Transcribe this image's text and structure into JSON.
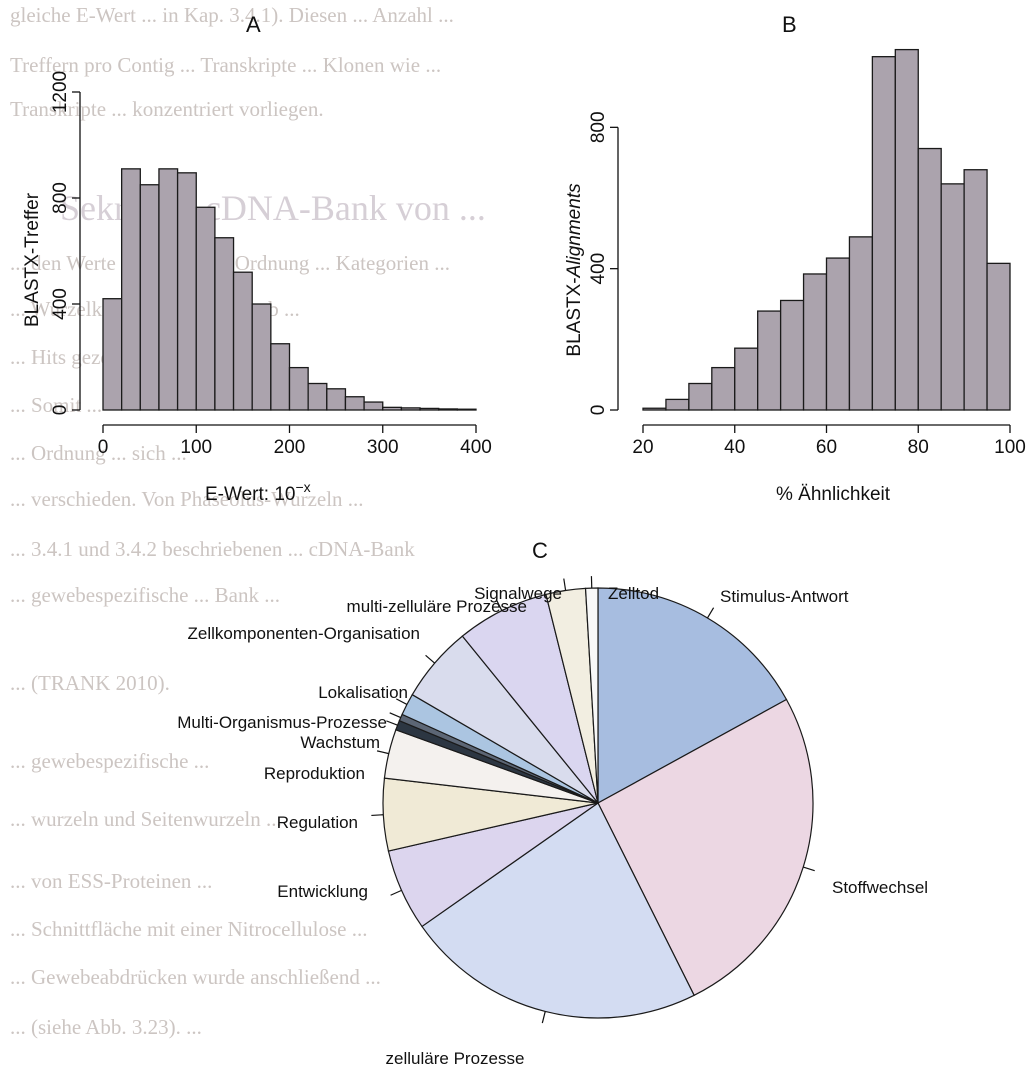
{
  "background_text": {
    "lines": [
      "gleiche E-Wert ... in Kap. 3.4.1). Diesen ... Anzahl ...",
      "Treffern pro Contig ... Transkripte ... Klonen wie ...",
      "Transkripte ... konzentriert vorliegen.",
      "Sekretive cDNA-Bank von ...",
      "... den Werte ... gehörende Ordnung ... Kategorien ...",
      "... Wurzelknospen und der Laub ...",
      "... Hits gezeigt werden ...",
      "... Somit ...",
      "... Ordnung ... sich ...",
      "... verschieden. Von Phaseolus-Wurzeln ... ",
      "... 3.4.1 und 3.4.2 beschriebenen ... cDNA-Bank",
      "... gewebespezifische ... Bank ...",
      "... (TRANK 2010).",
      "... gewebespezifische ...",
      "... wurzeln und Seitenwurzeln ...",
      "... von ESS-Proteinen ...",
      "... Schnittfläche mit einer Nitrocellulose ...",
      "... Gewebeabdrücken wurde anschließend ...",
      "... (siehe Abb. 3.23). ..."
    ]
  },
  "chart_data": [
    {
      "panel": "A",
      "type": "bar",
      "title": "A",
      "xlabel": "E-Wert: 10^{-x}",
      "ylabel": "BLASTX-Treffer",
      "xlim": [
        0,
        400
      ],
      "ylim": [
        0,
        1200
      ],
      "x_ticks": [
        "0",
        "100",
        "200",
        "300",
        "400"
      ],
      "y_ticks": [
        "0",
        "400",
        "800",
        "1200"
      ],
      "bin_width": 20,
      "bins_start": [
        0,
        20,
        40,
        60,
        80,
        100,
        120,
        140,
        160,
        180,
        200,
        220,
        240,
        260,
        280,
        300,
        320,
        340,
        360,
        380
      ],
      "values": [
        420,
        910,
        850,
        910,
        895,
        765,
        650,
        520,
        400,
        250,
        160,
        100,
        80,
        50,
        30,
        10,
        8,
        6,
        4,
        3
      ],
      "bar_color": "#aba3ad"
    },
    {
      "panel": "B",
      "type": "bar",
      "title": "B",
      "xlabel": "% Ähnlichkeit",
      "ylabel": "BLASTX-Alignments",
      "xlim": [
        20,
        100
      ],
      "ylim": [
        0,
        900
      ],
      "x_ticks": [
        "20",
        "40",
        "60",
        "80",
        "100"
      ],
      "y_ticks": [
        "0",
        "400",
        "800"
      ],
      "bin_width": 5,
      "bins_start": [
        20,
        25,
        30,
        35,
        40,
        45,
        50,
        55,
        60,
        65,
        70,
        75,
        80,
        85,
        90,
        95
      ],
      "values": [
        5,
        30,
        75,
        120,
        175,
        280,
        310,
        385,
        430,
        490,
        1000,
        1020,
        740,
        640,
        680,
        415
      ],
      "bar_color": "#aba3ad"
    },
    {
      "panel": "C",
      "type": "pie",
      "title": "C",
      "labels": [
        "Stimulus-Antwort",
        "Stoffwechsel",
        "zelluläre Prozesse",
        "Entwicklung",
        "Regulation",
        "Reproduktion",
        "Wachstum",
        "Multi-Organismus-Prozesse",
        "Lokalisation",
        "Zellkomponenten-Organisation",
        "multi-zelluläre Prozesse",
        "Signalwege",
        "Zelltod"
      ],
      "values": [
        16.6,
        25.0,
        22.1,
        6.0,
        5.3,
        3.6,
        0.7,
        0.5,
        1.6,
        5.6,
        6.8,
        2.9,
        0.9
      ],
      "colors": [
        "#a7bde0",
        "#ecd7e3",
        "#d3dcf2",
        "#dcd5ee",
        "#f0ead6",
        "#f4f1ee",
        "#2c3642",
        "#5c6675",
        "#abc5e1",
        "#d9dced",
        "#dad6f0",
        "#f2eee1",
        "#f8f8f8"
      ]
    }
  ]
}
